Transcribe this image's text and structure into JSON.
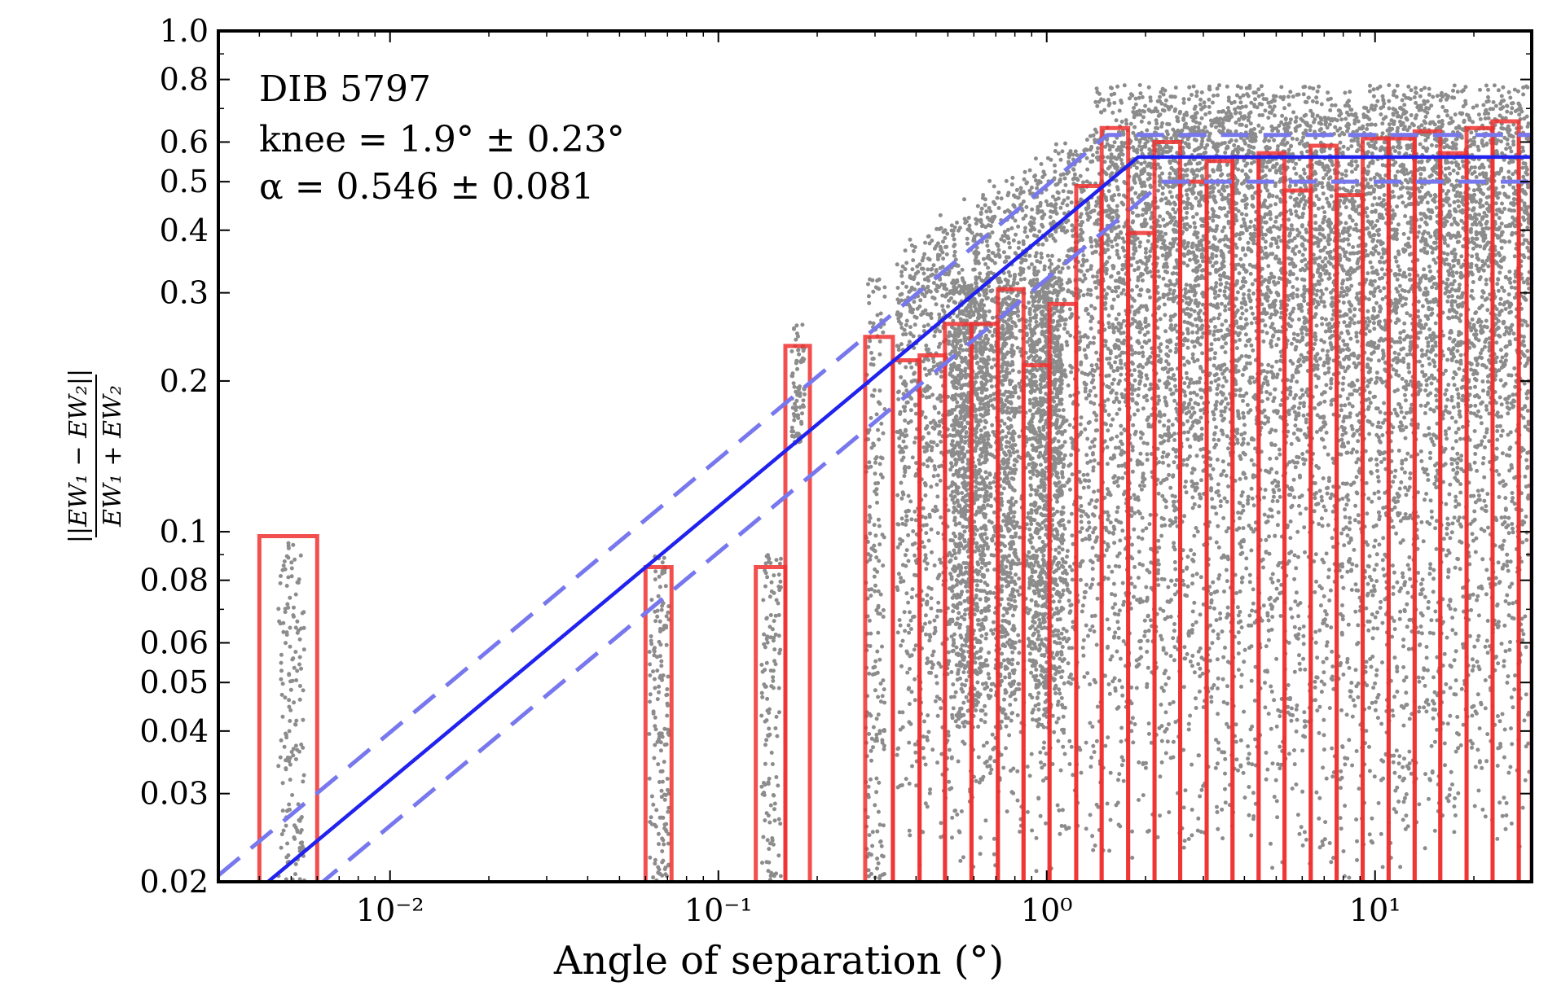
{
  "chart_data": {
    "type": "scatter",
    "title": "",
    "xlabel": "Angle of separation (°)",
    "ylabel_numerator": "||EW₁ − EW₂||",
    "ylabel_denominator": "EW₁ + EW₂",
    "xscale": "log",
    "yscale": "log",
    "xlim": [
      0.003,
      30
    ],
    "ylim": [
      0.02,
      1.0
    ],
    "x_ticks": [
      {
        "value": 0.01,
        "label": "10⁻²"
      },
      {
        "value": 0.1,
        "label": "10⁻¹"
      },
      {
        "value": 1,
        "label": "10⁰"
      },
      {
        "value": 10,
        "label": "10¹"
      }
    ],
    "y_ticks": [
      {
        "value": 0.02,
        "label": "0.02"
      },
      {
        "value": 0.03,
        "label": "0.03"
      },
      {
        "value": 0.04,
        "label": "0.04"
      },
      {
        "value": 0.05,
        "label": "0.05"
      },
      {
        "value": 0.06,
        "label": "0.06"
      },
      {
        "value": 0.08,
        "label": "0.08"
      },
      {
        "value": 0.1,
        "label": "0.1"
      },
      {
        "value": 0.2,
        "label": "0.2"
      },
      {
        "value": 0.3,
        "label": "0.3"
      },
      {
        "value": 0.4,
        "label": "0.4"
      },
      {
        "value": 0.5,
        "label": "0.5"
      },
      {
        "value": 0.6,
        "label": "0.6"
      },
      {
        "value": 0.8,
        "label": "0.8"
      },
      {
        "value": 1.0,
        "label": "1.0"
      }
    ],
    "annotations": [
      "DIB 5797",
      "knee = 1.9° ± 0.23°",
      "α = 0.546 ± 0.081"
    ],
    "fit": {
      "knee": 1.9,
      "knee_err": 0.23,
      "alpha": 0.546,
      "alpha_err": 0.081,
      "plateau": 0.56,
      "upper_plateau": 0.62,
      "lower_plateau": 0.5,
      "color": "#2222ee",
      "dashed_color": "#7777ee"
    },
    "histogram": {
      "color": "#f03030",
      "bins": [
        {
          "x0": 0.004,
          "x1": 0.006,
          "y": 0.098
        },
        {
          "x0": 0.06,
          "x1": 0.072,
          "y": 0.085
        },
        {
          "x0": 0.13,
          "x1": 0.16,
          "y": 0.085
        },
        {
          "x0": 0.16,
          "x1": 0.19,
          "y": 0.235
        },
        {
          "x0": 0.28,
          "x1": 0.34,
          "y": 0.245
        },
        {
          "x0": 0.34,
          "x1": 0.41,
          "y": 0.22
        },
        {
          "x0": 0.41,
          "x1": 0.49,
          "y": 0.225
        },
        {
          "x0": 0.49,
          "x1": 0.59,
          "y": 0.26
        },
        {
          "x0": 0.59,
          "x1": 0.71,
          "y": 0.26
        },
        {
          "x0": 0.71,
          "x1": 0.85,
          "y": 0.305
        },
        {
          "x0": 0.85,
          "x1": 1.02,
          "y": 0.215
        },
        {
          "x0": 1.02,
          "x1": 1.23,
          "y": 0.285
        },
        {
          "x0": 1.23,
          "x1": 1.47,
          "y": 0.49
        },
        {
          "x0": 1.47,
          "x1": 1.77,
          "y": 0.64
        },
        {
          "x0": 1.77,
          "x1": 2.13,
          "y": 0.395
        },
        {
          "x0": 2.13,
          "x1": 2.55,
          "y": 0.6
        },
        {
          "x0": 2.55,
          "x1": 3.07,
          "y": 0.5
        },
        {
          "x0": 3.07,
          "x1": 3.68,
          "y": 0.55
        },
        {
          "x0": 3.68,
          "x1": 4.42,
          "y": 0.56
        },
        {
          "x0": 4.42,
          "x1": 5.3,
          "y": 0.57
        },
        {
          "x0": 5.3,
          "x1": 6.37,
          "y": 0.48
        },
        {
          "x0": 6.37,
          "x1": 7.64,
          "y": 0.59
        },
        {
          "x0": 7.64,
          "x1": 9.17,
          "y": 0.47
        },
        {
          "x0": 9.17,
          "x1": 11.0,
          "y": 0.61
        },
        {
          "x0": 11.0,
          "x1": 13.2,
          "y": 0.61
        },
        {
          "x0": 13.2,
          "x1": 15.8,
          "y": 0.63
        },
        {
          "x0": 15.8,
          "x1": 19.0,
          "y": 0.57
        },
        {
          "x0": 19.0,
          "x1": 22.8,
          "y": 0.64
        },
        {
          "x0": 22.8,
          "x1": 27.4,
          "y": 0.66
        },
        {
          "x0": 27.4,
          "x1": 30.0,
          "y": 0.62
        }
      ]
    },
    "scatter": {
      "color": "#000000",
      "description_clusters": [
        {
          "x_center": 0.005,
          "x_spread": 0.04,
          "y_min": 0.02,
          "y_max": 0.1,
          "count": 160
        },
        {
          "x_center": 0.066,
          "x_spread": 0.03,
          "y_min": 0.02,
          "y_max": 0.09,
          "count": 160
        },
        {
          "x_center": 0.145,
          "x_spread": 0.03,
          "y_min": 0.02,
          "y_max": 0.09,
          "count": 130
        },
        {
          "x_center": 0.175,
          "x_spread": 0.02,
          "y_min": 0.15,
          "y_max": 0.26,
          "count": 80
        },
        {
          "x_center": 0.3,
          "x_spread": 0.03,
          "y_min": 0.02,
          "y_max": 0.32,
          "count": 220
        }
      ]
    }
  }
}
